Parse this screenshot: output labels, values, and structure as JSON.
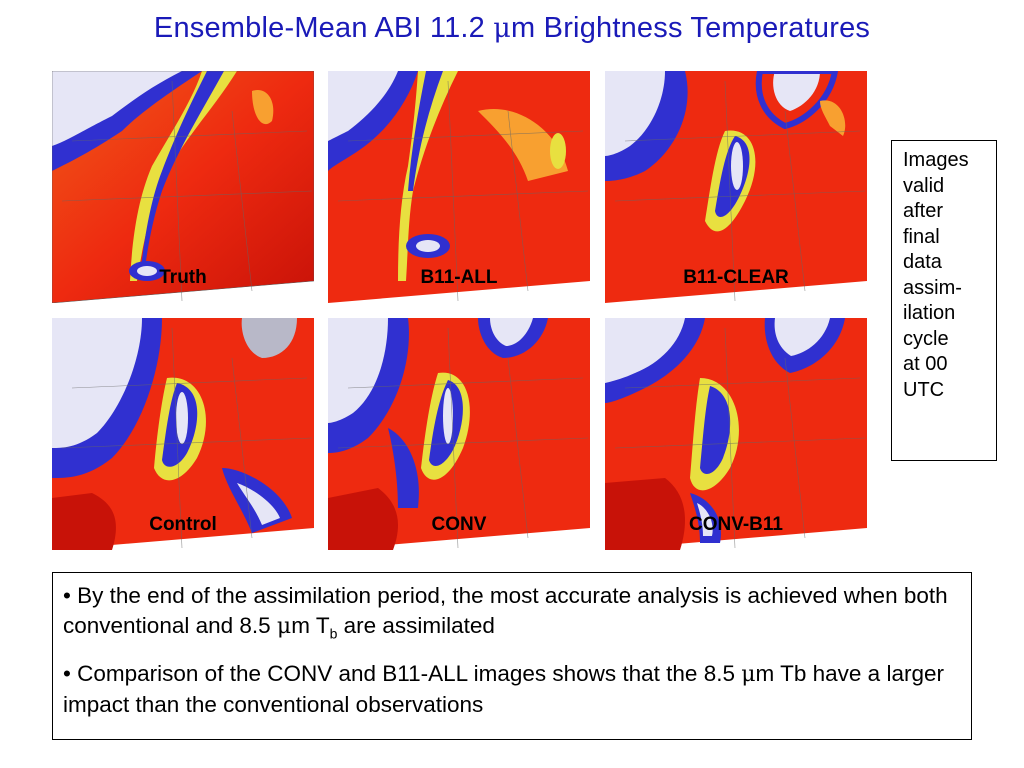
{
  "title": {
    "before_mu": "Ensemble-Mean ABI 11.2 ",
    "mu": "μ",
    "after_mu": "m Brightness Temperatures"
  },
  "panels": [
    {
      "label": "Truth"
    },
    {
      "label": "B11-ALL"
    },
    {
      "label": "B11-CLEAR"
    },
    {
      "label": "Control"
    },
    {
      "label": "CONV"
    },
    {
      "label": "CONV-B11"
    }
  ],
  "sidebox": {
    "lines": [
      "Images",
      "valid",
      "after",
      "final",
      "data",
      "assim-",
      "ilation",
      "cycle",
      "at 00",
      "UTC"
    ]
  },
  "bullets": [
    {
      "part1": "• By the end of the assimilation period, the most accurate analysis is achieved when both conventional and 8.5 ",
      "mu": "μ",
      "part2": "m T",
      "sub": "b",
      "part3": " are assimilated"
    },
    {
      "part1": "• Comparison of the CONV and B11-ALL images shows that the 8.5 ",
      "mu": "μ",
      "part2": "m Tb have a larger impact than the conventional observations"
    }
  ],
  "colors": {
    "title": "#1a1ab8",
    "warm_red": "#ee2a10",
    "orange": "#f87818",
    "yellow": "#e8e040",
    "cold_blue": "#2828d8",
    "cloud_white": "#e8e8f8"
  }
}
